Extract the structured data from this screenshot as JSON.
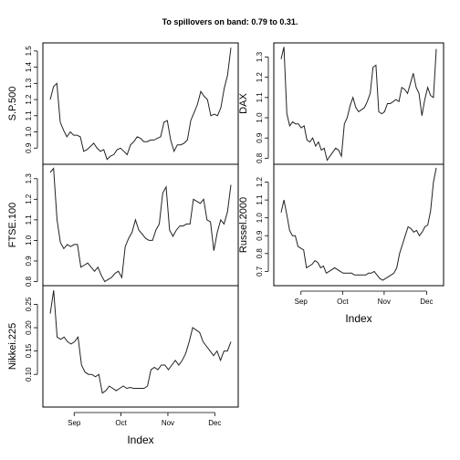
{
  "title": "To spillovers on band: 0.79 to 0.31.",
  "chart_data": [
    {
      "type": "line",
      "ylabel": "S.P.500",
      "xlabel": "",
      "ylim": [
        0.8,
        1.55
      ],
      "yticks": [
        "0.9",
        "1.0",
        "1.1",
        "1.2",
        "1.3",
        "1.4",
        "1.5"
      ],
      "xticks": [],
      "series": [
        {
          "values": [
            1.2,
            1.28,
            1.3,
            1.06,
            1.01,
            0.97,
            1.0,
            0.98,
            0.98,
            0.97,
            0.88,
            0.89,
            0.91,
            0.93,
            0.9,
            0.88,
            0.89,
            0.83,
            0.85,
            0.86,
            0.89,
            0.9,
            0.88,
            0.86,
            0.92,
            0.94,
            0.97,
            0.96,
            0.94,
            0.94,
            0.95,
            0.95,
            0.96,
            0.97,
            1.06,
            1.07,
            0.95,
            0.88,
            0.92,
            0.92,
            0.93,
            0.95,
            1.07,
            1.12,
            1.17,
            1.25,
            1.22,
            1.2,
            1.1,
            1.11,
            1.1,
            1.15,
            1.27,
            1.35,
            1.52
          ]
        }
      ]
    },
    {
      "type": "line",
      "ylabel": "FTSE.100",
      "xlabel": "",
      "ylim": [
        0.78,
        1.37
      ],
      "yticks": [
        "0.8",
        "0.9",
        "1.0",
        "1.1",
        "1.2",
        "1.3"
      ],
      "xticks": [],
      "series": [
        {
          "values": [
            1.33,
            1.35,
            1.1,
            0.99,
            0.96,
            0.98,
            0.97,
            0.98,
            0.98,
            0.87,
            0.88,
            0.89,
            0.87,
            0.85,
            0.87,
            0.83,
            0.8,
            0.81,
            0.82,
            0.84,
            0.85,
            0.82,
            0.97,
            1.01,
            1.04,
            1.1,
            1.05,
            1.03,
            1.01,
            1.0,
            1.0,
            1.05,
            1.08,
            1.23,
            1.26,
            1.05,
            1.02,
            1.05,
            1.07,
            1.07,
            1.08,
            1.08,
            1.2,
            1.19,
            1.18,
            1.2,
            1.1,
            1.09,
            0.95,
            1.04,
            1.1,
            1.08,
            1.14,
            1.27
          ]
        }
      ]
    },
    {
      "type": "line",
      "ylabel": "Nikkei.225",
      "xlabel": "Index",
      "ylim": [
        0.03,
        0.29
      ],
      "yticks": [
        "0.10",
        "0.15",
        "0.20",
        "0.25"
      ],
      "xticks": [
        "Sep",
        "Oct",
        "Nov",
        "Dec"
      ],
      "series": [
        {
          "values": [
            0.23,
            0.28,
            0.18,
            0.175,
            0.18,
            0.17,
            0.165,
            0.17,
            0.18,
            0.12,
            0.105,
            0.1,
            0.1,
            0.095,
            0.1,
            0.06,
            0.065,
            0.075,
            0.07,
            0.065,
            0.07,
            0.075,
            0.07,
            0.072,
            0.07,
            0.07,
            0.07,
            0.07,
            0.075,
            0.11,
            0.115,
            0.11,
            0.12,
            0.12,
            0.11,
            0.12,
            0.13,
            0.12,
            0.13,
            0.145,
            0.17,
            0.2,
            0.195,
            0.19,
            0.17,
            0.16,
            0.15,
            0.14,
            0.15,
            0.13,
            0.15,
            0.15,
            0.17
          ]
        }
      ]
    },
    {
      "type": "line",
      "ylabel": "DAX",
      "xlabel": "",
      "ylim": [
        0.77,
        1.37
      ],
      "yticks": [
        "0.8",
        "0.9",
        "1.0",
        "1.1",
        "1.2",
        "1.3"
      ],
      "xticks": [],
      "series": [
        {
          "values": [
            1.29,
            1.35,
            1.02,
            0.96,
            0.98,
            0.97,
            0.97,
            0.95,
            0.96,
            0.89,
            0.88,
            0.9,
            0.86,
            0.88,
            0.84,
            0.85,
            0.79,
            0.81,
            0.83,
            0.85,
            0.84,
            0.81,
            0.97,
            1.0,
            1.06,
            1.1,
            1.05,
            1.03,
            1.04,
            1.05,
            1.08,
            1.12,
            1.25,
            1.26,
            1.03,
            1.02,
            1.03,
            1.07,
            1.07,
            1.08,
            1.09,
            1.08,
            1.15,
            1.14,
            1.12,
            1.17,
            1.22,
            1.15,
            1.12,
            1.01,
            1.09,
            1.15,
            1.11,
            1.1,
            1.34
          ]
        }
      ]
    },
    {
      "type": "line",
      "ylabel": "Russel.2000",
      "xlabel": "Index",
      "ylim": [
        0.62,
        1.3
      ],
      "yticks": [
        "0.7",
        "0.8",
        "0.9",
        "1.0",
        "1.1",
        "1.2"
      ],
      "xticks": [
        "Sep",
        "Oct",
        "Nov",
        "Dec"
      ],
      "series": [
        {
          "values": [
            1.03,
            1.1,
            1.02,
            0.93,
            0.9,
            0.9,
            0.84,
            0.83,
            0.82,
            0.72,
            0.73,
            0.74,
            0.76,
            0.75,
            0.72,
            0.73,
            0.69,
            0.7,
            0.71,
            0.72,
            0.71,
            0.7,
            0.69,
            0.69,
            0.69,
            0.69,
            0.68,
            0.68,
            0.68,
            0.68,
            0.68,
            0.69,
            0.69,
            0.7,
            0.68,
            0.66,
            0.65,
            0.66,
            0.67,
            0.68,
            0.69,
            0.72,
            0.8,
            0.85,
            0.9,
            0.95,
            0.94,
            0.92,
            0.93,
            0.9,
            0.92,
            0.95,
            0.96,
            1.04,
            1.2,
            1.28
          ]
        }
      ]
    }
  ]
}
